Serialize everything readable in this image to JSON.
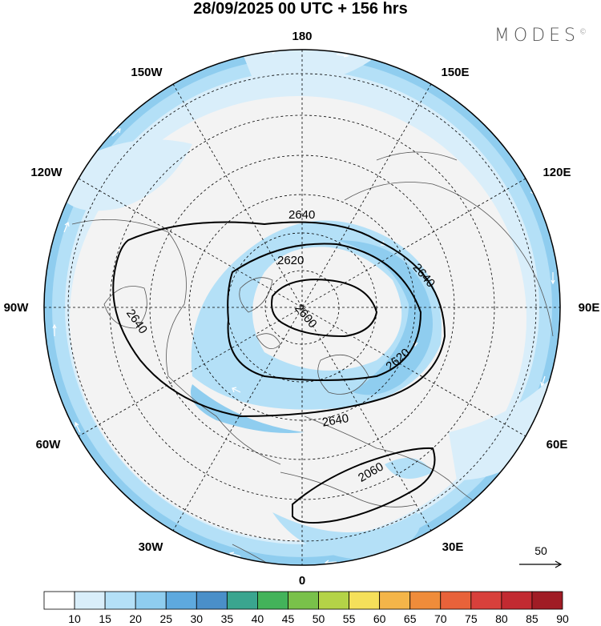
{
  "header": {
    "title": "28/09/2025  00 UTC  + 156 hrs",
    "brand": "MODES",
    "brand_mark": "©"
  },
  "map": {
    "projection": "north-polar-stereographic",
    "longitude_labels": [
      "180",
      "150E",
      "120E",
      "90E",
      "60E",
      "30E",
      "0",
      "30W",
      "60W",
      "90W",
      "120W",
      "150W"
    ],
    "contour_labels": [
      "2640",
      "2620",
      "2640",
      "2600",
      "2620",
      "2640",
      "2640",
      "2060"
    ],
    "vector_reference": "50",
    "wind_colors": [
      "#ffffff",
      "#d9eefa",
      "#b4e0f7",
      "#8fcdef",
      "#5ea9de",
      "#4a8fc9",
      "#3aa58f",
      "#43b35a",
      "#79c14a",
      "#b4d347",
      "#f5e05a",
      "#f4b549",
      "#ef8c3a",
      "#e8623a",
      "#d8403b",
      "#c22a31",
      "#a01c25",
      "#7e141c"
    ]
  },
  "colorbar": {
    "ticks": [
      "10",
      "15",
      "20",
      "25",
      "30",
      "35",
      "40",
      "45",
      "50",
      "55",
      "60",
      "65",
      "70",
      "75",
      "80",
      "85",
      "90"
    ],
    "colors": [
      "#ffffff",
      "#d9eefa",
      "#b4e0f7",
      "#8fcdef",
      "#5ea9de",
      "#4a8fc9",
      "#3aa58f",
      "#43b35a",
      "#79c14a",
      "#b4d347",
      "#f5e05a",
      "#f4b549",
      "#ef8c3a",
      "#e8623a",
      "#d8403b",
      "#c22a31",
      "#a01c25"
    ]
  }
}
